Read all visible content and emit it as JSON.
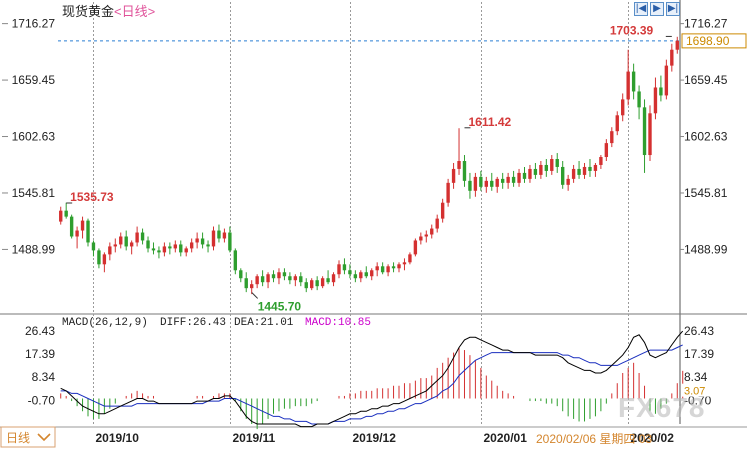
{
  "header": {
    "instrument": "现货黄金",
    "timeframe": "<日线>"
  },
  "nav_buttons": [
    {
      "name": "nav-first-button",
      "glyph": "|◀"
    },
    {
      "name": "nav-play-button",
      "glyph": "▶"
    },
    {
      "name": "nav-next-button",
      "glyph": "▶|"
    }
  ],
  "macd_legend": {
    "params": "MACD(26,12,9)",
    "diff": "DIFF:26.43",
    "dea": "DEA:21.01",
    "macd": "MACD:10.85"
  },
  "footer": {
    "date_label": "2020/02/06 星期四 03",
    "watermark": "FX678",
    "left_tab": "日线"
  },
  "colors": {
    "up": "#d43030",
    "down": "#2e9e2e",
    "grid": "#9a9a9a",
    "current_price": "#2b7fd4",
    "diff_line": "#000000",
    "dea_line": "#1a2fbf",
    "macd_label": "#cc00cc",
    "price_label": "#cc8a00"
  },
  "chart_data": {
    "type": "candlestick",
    "title": "现货黄金",
    "price_axis": {
      "ticks": [
        1716.27,
        1659.45,
        1602.63,
        1545.81,
        1488.99
      ],
      "range": [
        1426,
        1732
      ]
    },
    "x_tick_labels": [
      "2019/10",
      "2019/11",
      "2019/12",
      "2020/01",
      "2020/02"
    ],
    "current_price": 1698.9,
    "annotations": [
      {
        "label": "1535.73",
        "value": 1535.73
      },
      {
        "label": "1445.70",
        "value": 1445.7
      },
      {
        "label": "1611.42",
        "value": 1611.42
      },
      {
        "label": "1703.39",
        "value": 1703.39
      }
    ],
    "ohlc": [
      [
        1517,
        1532,
        1514,
        1528
      ],
      [
        1528,
        1536,
        1520,
        1522
      ],
      [
        1522,
        1524,
        1500,
        1502
      ],
      [
        1502,
        1512,
        1490,
        1508
      ],
      [
        1508,
        1522,
        1500,
        1518
      ],
      [
        1518,
        1520,
        1492,
        1496
      ],
      [
        1496,
        1498,
        1482,
        1488
      ],
      [
        1488,
        1490,
        1470,
        1474
      ],
      [
        1474,
        1486,
        1466,
        1484
      ],
      [
        1484,
        1496,
        1478,
        1492
      ],
      [
        1492,
        1500,
        1486,
        1494
      ],
      [
        1494,
        1506,
        1490,
        1502
      ],
      [
        1502,
        1508,
        1488,
        1492
      ],
      [
        1492,
        1498,
        1484,
        1496
      ],
      [
        1496,
        1512,
        1492,
        1506
      ],
      [
        1506,
        1510,
        1494,
        1498
      ],
      [
        1498,
        1502,
        1486,
        1490
      ],
      [
        1490,
        1496,
        1484,
        1488
      ],
      [
        1488,
        1492,
        1480,
        1486
      ],
      [
        1486,
        1496,
        1482,
        1492
      ],
      [
        1492,
        1496,
        1484,
        1490
      ],
      [
        1490,
        1498,
        1486,
        1494
      ],
      [
        1494,
        1498,
        1482,
        1486
      ],
      [
        1486,
        1492,
        1482,
        1490
      ],
      [
        1490,
        1500,
        1486,
        1496
      ],
      [
        1496,
        1506,
        1490,
        1500
      ],
      [
        1500,
        1506,
        1490,
        1494
      ],
      [
        1494,
        1498,
        1486,
        1492
      ],
      [
        1492,
        1512,
        1488,
        1508
      ],
      [
        1508,
        1514,
        1496,
        1500
      ],
      [
        1500,
        1510,
        1496,
        1506
      ],
      [
        1506,
        1512,
        1486,
        1488
      ],
      [
        1488,
        1490,
        1464,
        1468
      ],
      [
        1468,
        1470,
        1456,
        1460
      ],
      [
        1460,
        1466,
        1446,
        1450
      ],
      [
        1450,
        1458,
        1444,
        1454
      ],
      [
        1454,
        1464,
        1450,
        1462
      ],
      [
        1462,
        1468,
        1452,
        1456
      ],
      [
        1456,
        1466,
        1450,
        1464
      ],
      [
        1464,
        1468,
        1456,
        1460
      ],
      [
        1460,
        1470,
        1454,
        1466
      ],
      [
        1466,
        1470,
        1458,
        1462
      ],
      [
        1462,
        1466,
        1454,
        1458
      ],
      [
        1458,
        1464,
        1452,
        1462
      ],
      [
        1462,
        1466,
        1452,
        1456
      ],
      [
        1456,
        1460,
        1446,
        1450
      ],
      [
        1450,
        1460,
        1448,
        1458
      ],
      [
        1458,
        1462,
        1448,
        1452
      ],
      [
        1452,
        1462,
        1450,
        1460
      ],
      [
        1460,
        1468,
        1454,
        1456
      ],
      [
        1456,
        1466,
        1452,
        1464
      ],
      [
        1464,
        1478,
        1460,
        1474
      ],
      [
        1474,
        1480,
        1464,
        1468
      ],
      [
        1468,
        1474,
        1460,
        1464
      ],
      [
        1464,
        1468,
        1456,
        1460
      ],
      [
        1460,
        1468,
        1456,
        1466
      ],
      [
        1466,
        1472,
        1460,
        1462
      ],
      [
        1462,
        1470,
        1458,
        1468
      ],
      [
        1468,
        1476,
        1462,
        1472
      ],
      [
        1472,
        1476,
        1464,
        1466
      ],
      [
        1466,
        1474,
        1462,
        1472
      ],
      [
        1472,
        1476,
        1466,
        1470
      ],
      [
        1470,
        1476,
        1466,
        1474
      ],
      [
        1474,
        1480,
        1468,
        1476
      ],
      [
        1476,
        1486,
        1474,
        1484
      ],
      [
        1484,
        1500,
        1482,
        1498
      ],
      [
        1498,
        1506,
        1494,
        1502
      ],
      [
        1502,
        1508,
        1496,
        1504
      ],
      [
        1504,
        1514,
        1500,
        1510
      ],
      [
        1510,
        1524,
        1506,
        1520
      ],
      [
        1520,
        1540,
        1516,
        1536
      ],
      [
        1536,
        1560,
        1532,
        1556
      ],
      [
        1556,
        1576,
        1550,
        1570
      ],
      [
        1570,
        1611,
        1564,
        1578
      ],
      [
        1578,
        1584,
        1552,
        1558
      ],
      [
        1558,
        1566,
        1540,
        1548
      ],
      [
        1548,
        1566,
        1542,
        1562
      ],
      [
        1562,
        1568,
        1548,
        1552
      ],
      [
        1552,
        1562,
        1546,
        1558
      ],
      [
        1558,
        1566,
        1548,
        1552
      ],
      [
        1552,
        1562,
        1546,
        1560
      ],
      [
        1560,
        1566,
        1550,
        1556
      ],
      [
        1556,
        1566,
        1550,
        1562
      ],
      [
        1562,
        1568,
        1552,
        1556
      ],
      [
        1556,
        1570,
        1552,
        1566
      ],
      [
        1566,
        1572,
        1556,
        1560
      ],
      [
        1560,
        1574,
        1556,
        1570
      ],
      [
        1570,
        1576,
        1560,
        1564
      ],
      [
        1564,
        1578,
        1560,
        1574
      ],
      [
        1574,
        1580,
        1562,
        1568
      ],
      [
        1568,
        1584,
        1564,
        1580
      ],
      [
        1580,
        1586,
        1566,
        1572
      ],
      [
        1572,
        1578,
        1550,
        1554
      ],
      [
        1554,
        1564,
        1548,
        1560
      ],
      [
        1560,
        1574,
        1556,
        1570
      ],
      [
        1570,
        1578,
        1560,
        1564
      ],
      [
        1564,
        1576,
        1560,
        1572
      ],
      [
        1572,
        1580,
        1562,
        1568
      ],
      [
        1568,
        1576,
        1562,
        1574
      ],
      [
        1574,
        1584,
        1570,
        1582
      ],
      [
        1582,
        1600,
        1578,
        1596
      ],
      [
        1596,
        1612,
        1592,
        1608
      ],
      [
        1608,
        1628,
        1604,
        1624
      ],
      [
        1624,
        1646,
        1618,
        1640
      ],
      [
        1640,
        1690,
        1634,
        1668
      ],
      [
        1668,
        1676,
        1640,
        1648
      ],
      [
        1648,
        1654,
        1620,
        1632
      ],
      [
        1632,
        1640,
        1566,
        1584
      ],
      [
        1584,
        1634,
        1578,
        1626
      ],
      [
        1626,
        1662,
        1620,
        1652
      ],
      [
        1652,
        1664,
        1638,
        1644
      ],
      [
        1644,
        1680,
        1640,
        1674
      ],
      [
        1674,
        1696,
        1668,
        1690
      ],
      [
        1690,
        1703,
        1686,
        1699
      ]
    ],
    "macd": {
      "axis_ticks": [
        26.43,
        17.39,
        8.34,
        -0.7
      ],
      "range": [
        -10,
        30
      ],
      "diff": [
        4,
        3,
        1,
        -1,
        -3,
        -4,
        -5,
        -6,
        -6,
        -5,
        -4,
        -3,
        -2,
        -1,
        0,
        0,
        -1,
        -1,
        -2,
        -2,
        -2,
        -2,
        -2,
        -2,
        -2,
        -1,
        -1,
        -1,
        0,
        0,
        1,
        1,
        -1,
        -4,
        -7,
        -9,
        -10,
        -10,
        -10,
        -10,
        -10,
        -10,
        -10,
        -10,
        -11,
        -11,
        -11,
        -10,
        -10,
        -10,
        -9,
        -8,
        -7,
        -6,
        -6,
        -5,
        -5,
        -4,
        -4,
        -3,
        -3,
        -2,
        -2,
        -1,
        0,
        1,
        2,
        3,
        5,
        7,
        9,
        12,
        16,
        20,
        23,
        24,
        24,
        23,
        22,
        21,
        20,
        19,
        19,
        18,
        18,
        18,
        18,
        17,
        17,
        17,
        17,
        17,
        16,
        14,
        13,
        12,
        11,
        11,
        10,
        10,
        11,
        13,
        15,
        17,
        20,
        24,
        25,
        22,
        17,
        16,
        17,
        18,
        21,
        24,
        26.43
      ],
      "dea": [
        3,
        3,
        2,
        2,
        1,
        0,
        -1,
        -2,
        -3,
        -3,
        -3,
        -3,
        -3,
        -3,
        -2,
        -2,
        -2,
        -2,
        -2,
        -2,
        -2,
        -2,
        -2,
        -2,
        -2,
        -2,
        -2,
        -1,
        -1,
        -1,
        0,
        0,
        0,
        -1,
        -2,
        -3,
        -4,
        -5,
        -6,
        -7,
        -7,
        -8,
        -8,
        -9,
        -9,
        -9,
        -10,
        -10,
        -10,
        -10,
        -9,
        -9,
        -9,
        -8,
        -8,
        -8,
        -7,
        -7,
        -6,
        -6,
        -5,
        -5,
        -4,
        -4,
        -3,
        -2,
        -2,
        -1,
        0,
        1,
        3,
        4,
        6,
        9,
        11,
        13,
        15,
        16,
        17,
        18,
        18,
        18,
        18,
        18,
        18,
        18,
        18,
        18,
        18,
        18,
        18,
        18,
        17,
        17,
        16,
        16,
        15,
        14,
        14,
        13,
        13,
        13,
        13,
        14,
        15,
        16,
        17,
        18,
        19,
        19,
        19,
        19,
        19,
        20,
        21.01
      ],
      "hist": [
        2,
        1,
        -1,
        -3,
        -5,
        -7,
        -8,
        -8,
        -6,
        -4,
        -2,
        0,
        1,
        2,
        3,
        2,
        1,
        1,
        0,
        0,
        0,
        0,
        0,
        0,
        0,
        1,
        1,
        0,
        1,
        2,
        2,
        2,
        -1,
        -5,
        -8,
        -10,
        -12,
        -10,
        -8,
        -6,
        -5,
        -4,
        -4,
        -3,
        -3,
        -3,
        -2,
        -1,
        0,
        0,
        0,
        1,
        1,
        2,
        2,
        3,
        3,
        3,
        4,
        4,
        4,
        5,
        5,
        6,
        6,
        7,
        8,
        8,
        9,
        12,
        14,
        16,
        18,
        20,
        19,
        17,
        15,
        12,
        9,
        7,
        5,
        3,
        2,
        1,
        0,
        0,
        -1,
        -1,
        -1,
        -2,
        -2,
        -3,
        -5,
        -7,
        -8,
        -9,
        -9,
        -8,
        -7,
        -5,
        -2,
        2,
        6,
        10,
        12,
        14,
        10,
        5,
        -5,
        -6,
        -4,
        -2,
        2,
        6,
        10.85
      ]
    }
  }
}
